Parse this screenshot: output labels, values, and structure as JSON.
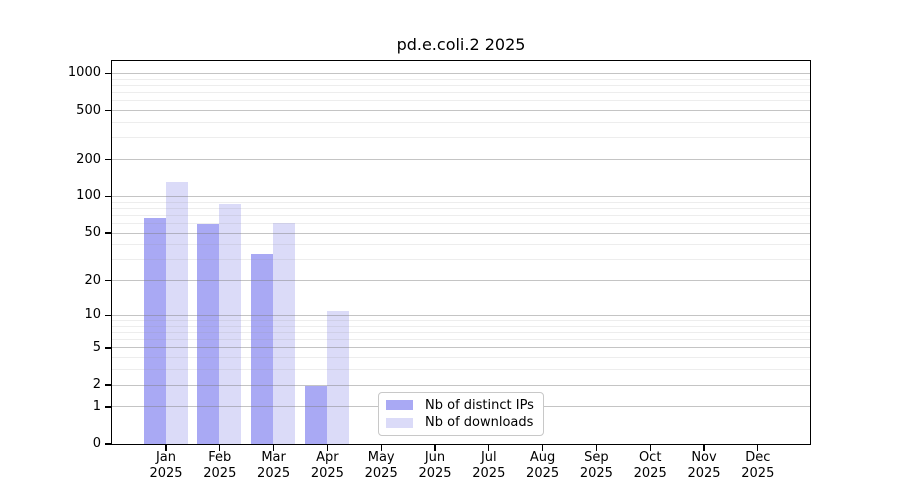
{
  "chart_data": {
    "type": "bar",
    "title": "pd.e.coli.2 2025",
    "x_categories": [
      "Jan",
      "Feb",
      "Mar",
      "Apr",
      "May",
      "Jun",
      "Jul",
      "Aug",
      "Sep",
      "Oct",
      "Nov",
      "Dec"
    ],
    "x_year": "2025",
    "xlabel": "",
    "ylabel": "",
    "y_scale": "log1p",
    "y_ticks": [
      0,
      1,
      2,
      5,
      10,
      20,
      50,
      100,
      200,
      500,
      1000
    ],
    "ylim": [
      0,
      1270
    ],
    "grid": true,
    "legend_position": "bottom-center",
    "series": [
      {
        "name": "Nb of distinct IPs",
        "color": "#a9a9f4",
        "values": [
          67,
          60,
          34,
          2,
          0,
          0,
          0,
          0,
          0,
          0,
          0,
          0
        ]
      },
      {
        "name": "Nb of downloads",
        "color": "#dbdbf8",
        "values": [
          132,
          87,
          61,
          11,
          0,
          0,
          0,
          0,
          0,
          0,
          0,
          0
        ]
      }
    ],
    "colors": {
      "grid_major": "#c9c9c9",
      "grid_minor": "#ededed",
      "axis": "#000000",
      "text": "#000000"
    }
  }
}
